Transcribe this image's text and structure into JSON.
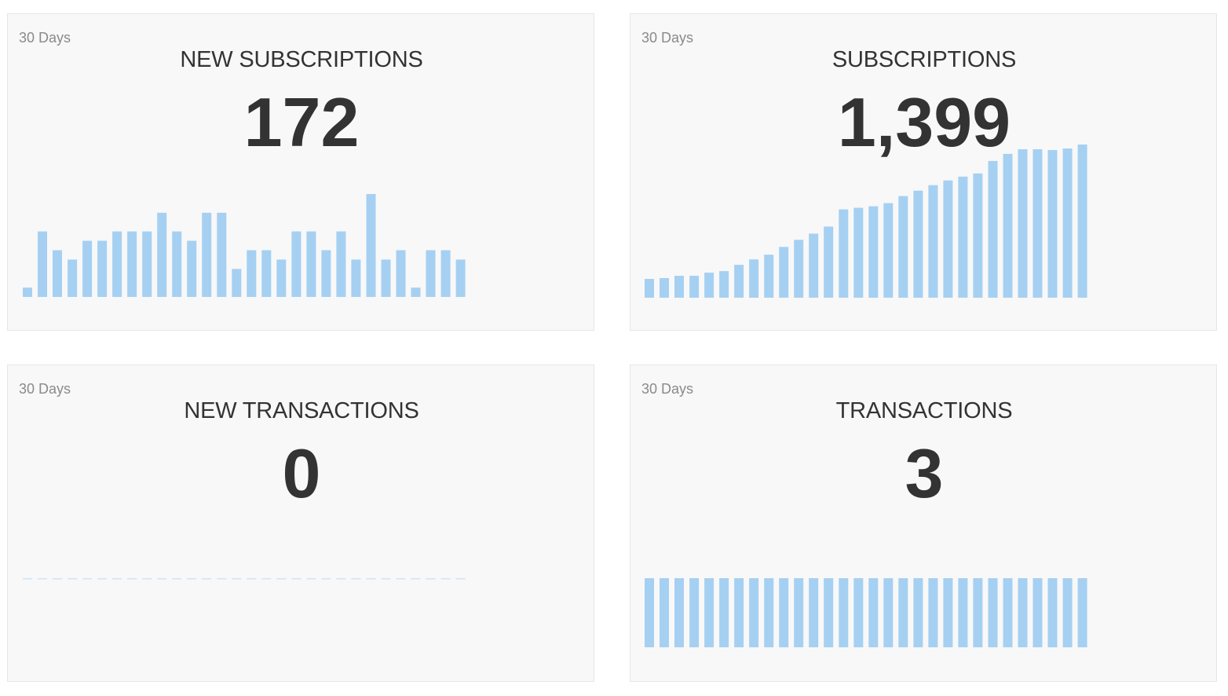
{
  "bar_color": "#a5d0f2",
  "baseline_color": "#cfe4f6",
  "cards": [
    {
      "period": "30 Days",
      "title": "NEW SUBSCRIPTIONS",
      "value": "172",
      "chart_data": {
        "type": "bar",
        "values": [
          1,
          7,
          5,
          4,
          6,
          6,
          7,
          7,
          7,
          9,
          7,
          6,
          9,
          9,
          3,
          5,
          5,
          4,
          7,
          7,
          5,
          7,
          4,
          11,
          4,
          5,
          1,
          5,
          5,
          4
        ],
        "ylim": [
          0,
          11
        ],
        "grid": false
      }
    },
    {
      "period": "30 Days",
      "title": "SUBSCRIPTIONS",
      "value": "1,399",
      "chart_data": {
        "type": "bar",
        "values": [
          1227,
          1228,
          1231,
          1231,
          1235,
          1237,
          1245,
          1252,
          1258,
          1268,
          1277,
          1285,
          1294,
          1316,
          1318,
          1320,
          1324,
          1333,
          1340,
          1347,
          1353,
          1358,
          1362,
          1378,
          1387,
          1393,
          1393,
          1392,
          1394,
          1399
        ],
        "ylim": [
          1220,
          1399
        ],
        "grid": false
      }
    },
    {
      "period": "30 Days",
      "title": "NEW TRANSACTIONS",
      "value": "0",
      "chart_data": {
        "type": "bar",
        "values": [
          0,
          0,
          0,
          0,
          0,
          0,
          0,
          0,
          0,
          0,
          0,
          0,
          0,
          0,
          0,
          0,
          0,
          0,
          0,
          0,
          0,
          0,
          0,
          0,
          0,
          0,
          0,
          0,
          0,
          0
        ],
        "ylim": [
          0,
          1
        ],
        "grid": false
      }
    },
    {
      "period": "30 Days",
      "title": "TRANSACTIONS",
      "value": "3",
      "chart_data": {
        "type": "bar",
        "values": [
          3,
          3,
          3,
          3,
          3,
          3,
          3,
          3,
          3,
          3,
          3,
          3,
          3,
          3,
          3,
          3,
          3,
          3,
          3,
          3,
          3,
          3,
          3,
          3,
          3,
          3,
          3,
          3,
          3,
          3
        ],
        "ylim": [
          0,
          3
        ],
        "grid": false
      }
    }
  ]
}
